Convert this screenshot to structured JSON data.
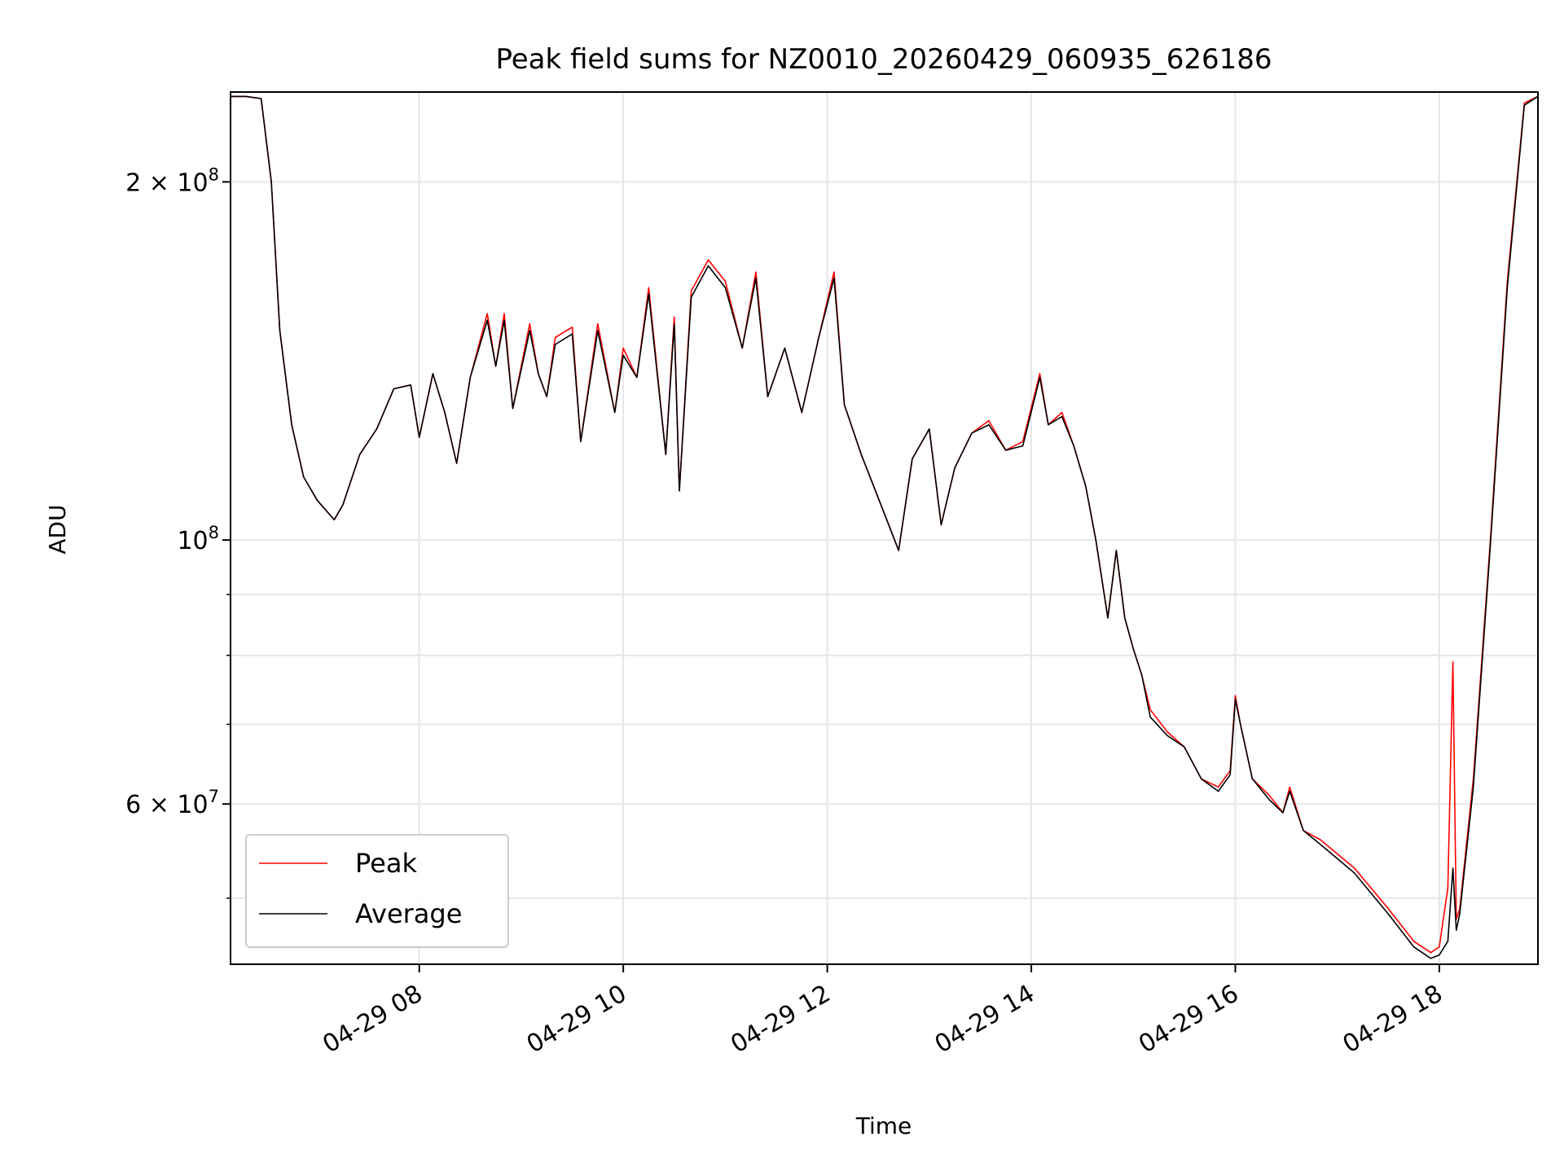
{
  "chart_data": {
    "type": "line",
    "title": "Peak field sums for NZ0010_20260429_060935_626186",
    "xlabel": "Time",
    "ylabel": "ADU",
    "x_axis": "time",
    "x_range": [
      "04-29 06:09",
      "04-29 18:58"
    ],
    "y_scale": "log",
    "ylim": [
      44000000,
      238000000
    ],
    "grid": true,
    "legend_position": "lower-left",
    "x_ticks": [
      {
        "t": "04-29 08:00",
        "label": "04-29 08"
      },
      {
        "t": "04-29 10:00",
        "label": "04-29 10"
      },
      {
        "t": "04-29 12:00",
        "label": "04-29 12"
      },
      {
        "t": "04-29 14:00",
        "label": "04-29 14"
      },
      {
        "t": "04-29 16:00",
        "label": "04-29 16"
      },
      {
        "t": "04-29 18:00",
        "label": "04-29 18"
      }
    ],
    "y_major_ticks": [
      {
        "value": 200000000,
        "base": "2 × 10",
        "exp": "8"
      },
      {
        "value": 100000000,
        "base": "10",
        "exp": "8"
      },
      {
        "value": 60000000,
        "base": "6 × 10",
        "exp": "7"
      }
    ],
    "y_minor_ticks": [
      50000000,
      70000000,
      80000000,
      90000000
    ],
    "series": [
      {
        "name": "Peak",
        "color": "#ff0000",
        "t": [
          "04-29 06:09",
          "04-29 06:18",
          "04-29 06:27",
          "04-29 06:33",
          "04-29 06:38",
          "04-29 06:45",
          "04-29 06:52",
          "04-29 07:00",
          "04-29 07:10",
          "04-29 07:15",
          "04-29 07:25",
          "04-29 07:35",
          "04-29 07:45",
          "04-29 07:55",
          "04-29 08:00",
          "04-29 08:08",
          "04-29 08:15",
          "04-29 08:22",
          "04-29 08:30",
          "04-29 08:40",
          "04-29 08:45",
          "04-29 08:50",
          "04-29 08:55",
          "04-29 09:05",
          "04-29 09:10",
          "04-29 09:15",
          "04-29 09:20",
          "04-29 09:30",
          "04-29 09:35",
          "04-29 09:45",
          "04-29 09:55",
          "04-29 10:00",
          "04-29 10:08",
          "04-29 10:15",
          "04-29 10:25",
          "04-29 10:30",
          "04-29 10:33",
          "04-29 10:40",
          "04-29 10:50",
          "04-29 11:00",
          "04-29 11:10",
          "04-29 11:18",
          "04-29 11:25",
          "04-29 11:35",
          "04-29 11:45",
          "04-29 11:55",
          "04-29 12:04",
          "04-29 12:10",
          "04-29 12:20",
          "04-29 12:35",
          "04-29 12:42",
          "04-29 12:50",
          "04-29 13:00",
          "04-29 13:07",
          "04-29 13:15",
          "04-29 13:25",
          "04-29 13:35",
          "04-29 13:45",
          "04-29 13:55",
          "04-29 14:05",
          "04-29 14:10",
          "04-29 14:18",
          "04-29 14:25",
          "04-29 14:32",
          "04-29 14:38",
          "04-29 14:45",
          "04-29 14:50",
          "04-29 14:55",
          "04-29 15:00",
          "04-29 15:05",
          "04-29 15:10",
          "04-29 15:20",
          "04-29 15:30",
          "04-29 15:40",
          "04-29 15:50",
          "04-29 15:57",
          "04-29 16:00",
          "04-29 16:03",
          "04-29 16:10",
          "04-29 16:20",
          "04-29 16:28",
          "04-29 16:32",
          "04-29 16:40",
          "04-29 16:50",
          "04-29 17:10",
          "04-29 17:30",
          "04-29 17:45",
          "04-29 17:55",
          "04-29 18:00",
          "04-29 18:05",
          "04-29 18:08",
          "04-29 18:10",
          "04-29 18:12",
          "04-29 18:20",
          "04-29 18:30",
          "04-29 18:40",
          "04-29 18:50",
          "04-29 18:58"
        ],
        "values": [
          236000000,
          236000000,
          235000000,
          200000000,
          150000000,
          125000000,
          113000000,
          108000000,
          104000000,
          107000000,
          118000000,
          124000000,
          134000000,
          135000000,
          122000000,
          138000000,
          128000000,
          116000000,
          137000000,
          155000000,
          140000000,
          155000000,
          129000000,
          152000000,
          138000000,
          132000000,
          148000000,
          151000000,
          121000000,
          152000000,
          128000000,
          145000000,
          137000000,
          163000000,
          118000000,
          154000000,
          110000000,
          162000000,
          172000000,
          165000000,
          145000000,
          168000000,
          132000000,
          145000000,
          128000000,
          148000000,
          168000000,
          130000000,
          118000000,
          104000000,
          98000000,
          117000000,
          124000000,
          103000000,
          115000000,
          123000000,
          126000000,
          119000000,
          121000000,
          138000000,
          125000000,
          128000000,
          120000000,
          111000000,
          100000000,
          86000000,
          98000000,
          86000000,
          81000000,
          77000000,
          72000000,
          69000000,
          67000000,
          63000000,
          62000000,
          64000000,
          74000000,
          70000000,
          63000000,
          61000000,
          59000000,
          62000000,
          57000000,
          56000000,
          53000000,
          49000000,
          46000000,
          45000000,
          45500000,
          51000000,
          79000000,
          48000000,
          49000000,
          63000000,
          100000000,
          165000000,
          233000000,
          236000000
        ]
      },
      {
        "name": "Average",
        "color": "#000000",
        "t": [
          "04-29 06:09",
          "04-29 06:18",
          "04-29 06:27",
          "04-29 06:33",
          "04-29 06:38",
          "04-29 06:45",
          "04-29 06:52",
          "04-29 07:00",
          "04-29 07:10",
          "04-29 07:15",
          "04-29 07:25",
          "04-29 07:35",
          "04-29 07:45",
          "04-29 07:55",
          "04-29 08:00",
          "04-29 08:08",
          "04-29 08:15",
          "04-29 08:22",
          "04-29 08:30",
          "04-29 08:40",
          "04-29 08:45",
          "04-29 08:50",
          "04-29 08:55",
          "04-29 09:05",
          "04-29 09:10",
          "04-29 09:15",
          "04-29 09:20",
          "04-29 09:30",
          "04-29 09:35",
          "04-29 09:45",
          "04-29 09:55",
          "04-29 10:00",
          "04-29 10:08",
          "04-29 10:15",
          "04-29 10:25",
          "04-29 10:30",
          "04-29 10:33",
          "04-29 10:40",
          "04-29 10:50",
          "04-29 11:00",
          "04-29 11:10",
          "04-29 11:18",
          "04-29 11:25",
          "04-29 11:35",
          "04-29 11:45",
          "04-29 11:55",
          "04-29 12:04",
          "04-29 12:10",
          "04-29 12:20",
          "04-29 12:35",
          "04-29 12:42",
          "04-29 12:50",
          "04-29 13:00",
          "04-29 13:07",
          "04-29 13:15",
          "04-29 13:25",
          "04-29 13:35",
          "04-29 13:45",
          "04-29 13:55",
          "04-29 14:05",
          "04-29 14:10",
          "04-29 14:18",
          "04-29 14:25",
          "04-29 14:32",
          "04-29 14:38",
          "04-29 14:45",
          "04-29 14:50",
          "04-29 14:55",
          "04-29 15:00",
          "04-29 15:05",
          "04-29 15:10",
          "04-29 15:20",
          "04-29 15:30",
          "04-29 15:40",
          "04-29 15:50",
          "04-29 15:57",
          "04-29 16:00",
          "04-29 16:03",
          "04-29 16:10",
          "04-29 16:20",
          "04-29 16:28",
          "04-29 16:32",
          "04-29 16:40",
          "04-29 16:50",
          "04-29 17:10",
          "04-29 17:30",
          "04-29 17:45",
          "04-29 17:55",
          "04-29 18:00",
          "04-29 18:05",
          "04-29 18:08",
          "04-29 18:10",
          "04-29 18:12",
          "04-29 18:20",
          "04-29 18:30",
          "04-29 18:40",
          "04-29 18:50",
          "04-29 18:58"
        ],
        "values": [
          236000000,
          236000000,
          235000000,
          200000000,
          150000000,
          125000000,
          113000000,
          108000000,
          104000000,
          107000000,
          118000000,
          124000000,
          134000000,
          135000000,
          122000000,
          138000000,
          128000000,
          116000000,
          137000000,
          153000000,
          140000000,
          153000000,
          129000000,
          150000000,
          138000000,
          132000000,
          146000000,
          149000000,
          121000000,
          150000000,
          128000000,
          143000000,
          137000000,
          161000000,
          118000000,
          152000000,
          110000000,
          160000000,
          170000000,
          163000000,
          145000000,
          166000000,
          132000000,
          145000000,
          128000000,
          148000000,
          166000000,
          130000000,
          118000000,
          104000000,
          98000000,
          117000000,
          124000000,
          103000000,
          115000000,
          123000000,
          125000000,
          119000000,
          120000000,
          137000000,
          125000000,
          127000000,
          120000000,
          111000000,
          100000000,
          86000000,
          98000000,
          86000000,
          81000000,
          77000000,
          71000000,
          68500000,
          67000000,
          63000000,
          61500000,
          63500000,
          73500000,
          70000000,
          63000000,
          60500000,
          59000000,
          61500000,
          57000000,
          55500000,
          52500000,
          48500000,
          45500000,
          44500000,
          44800000,
          46000000,
          53000000,
          47000000,
          48500000,
          62000000,
          99000000,
          163000000,
          232000000,
          236000000
        ]
      }
    ]
  }
}
